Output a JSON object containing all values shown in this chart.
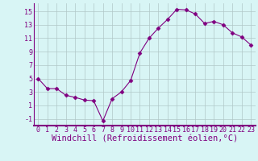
{
  "x": [
    0,
    1,
    2,
    3,
    4,
    5,
    6,
    7,
    8,
    9,
    10,
    11,
    12,
    13,
    14,
    15,
    16,
    17,
    18,
    19,
    20,
    21,
    22,
    23
  ],
  "y": [
    5.0,
    3.5,
    3.5,
    2.5,
    2.2,
    1.8,
    1.7,
    -1.3,
    2.0,
    3.0,
    4.7,
    8.8,
    11.0,
    12.5,
    13.8,
    15.3,
    15.2,
    14.6,
    13.2,
    13.5,
    13.0,
    11.8,
    11.2,
    10.0
  ],
  "xlabel": "Windchill (Refroidissement éolien,°C)",
  "xlim": [
    -0.5,
    23.5
  ],
  "ylim": [
    -2.0,
    16.2
  ],
  "yticks": [
    -1,
    1,
    3,
    5,
    7,
    9,
    11,
    13,
    15
  ],
  "xtick_labels": [
    "0",
    "1",
    "2",
    "3",
    "4",
    "5",
    "6",
    "7",
    "8",
    "9",
    "10",
    "11",
    "12",
    "13",
    "14",
    "15",
    "16",
    "17",
    "18",
    "19",
    "20",
    "21",
    "22",
    "23"
  ],
  "line_color": "#800080",
  "marker": "D",
  "marker_size": 2.5,
  "bg_color": "#d8f5f5",
  "grid_color": "#b0c8c8",
  "separator_color": "#800080",
  "font_color": "#800080",
  "tick_fontsize": 6,
  "xlabel_fontsize": 7.5
}
